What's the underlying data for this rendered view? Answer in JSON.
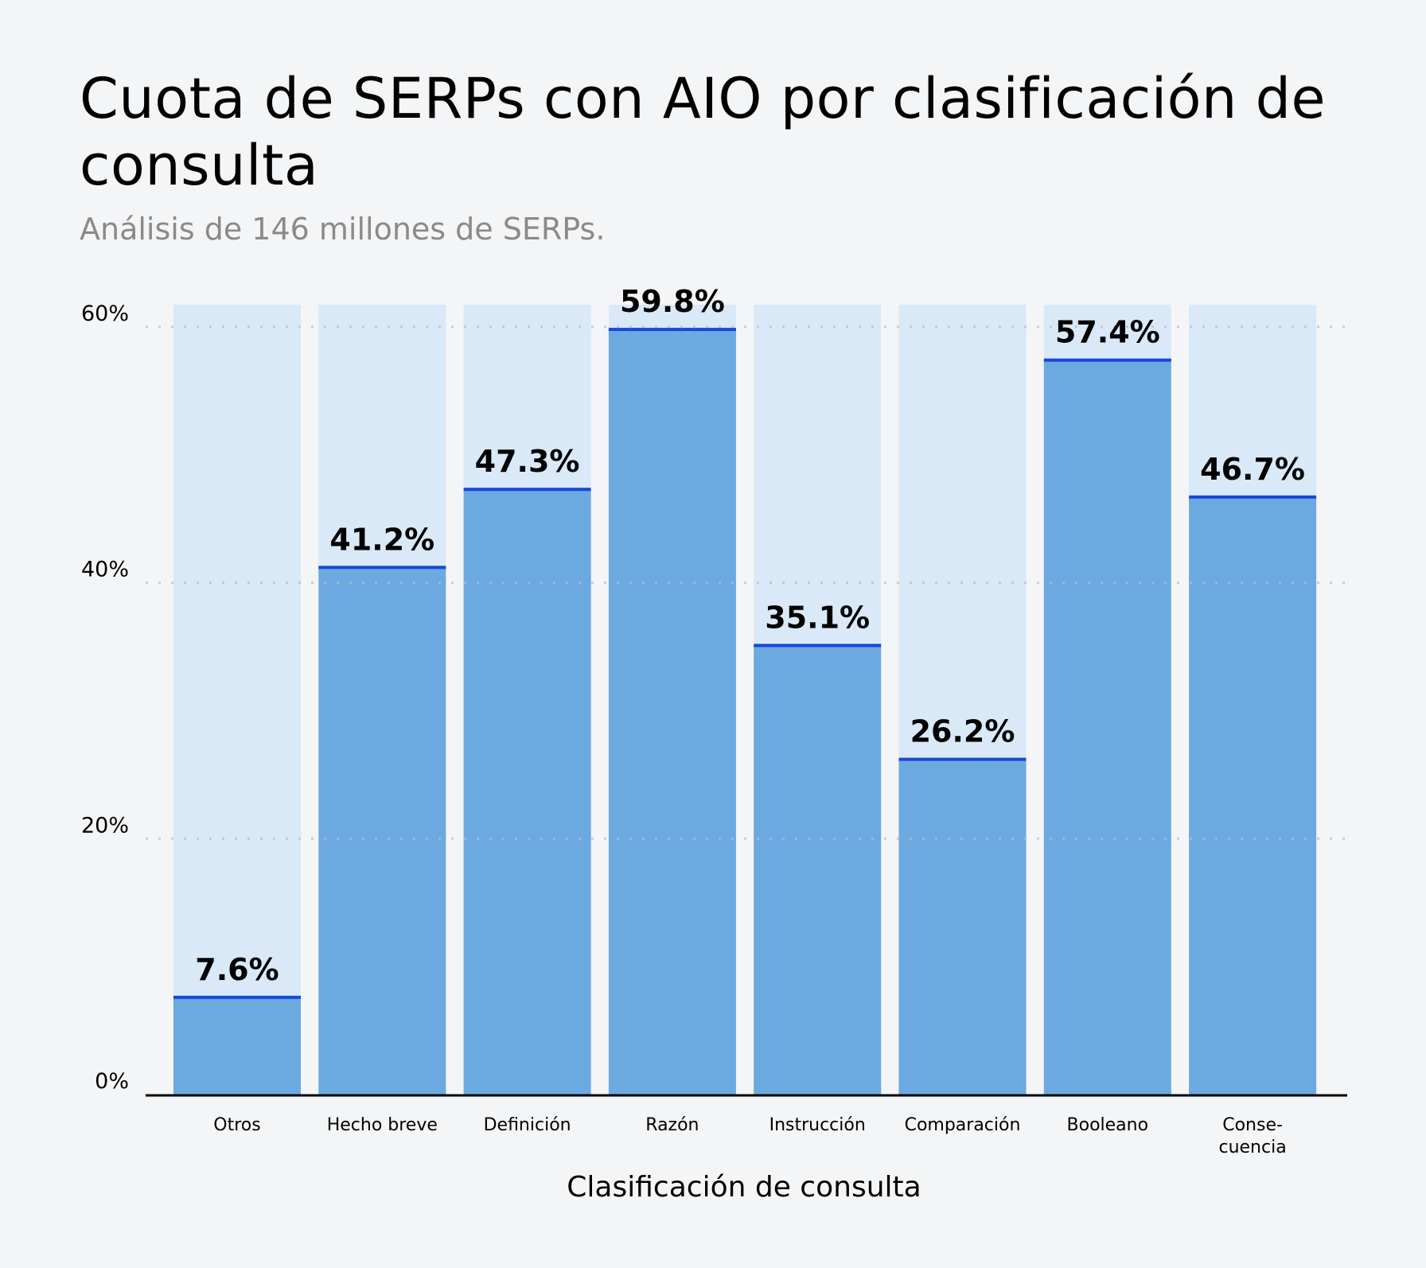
{
  "title": "Cuota de SERPs con AIO por clasificación de consulta",
  "subtitle": "Análisis de 146 millones de SERPs.",
  "colors": {
    "bar": "#6ca9e0",
    "bar_background": "#d9e9f8",
    "bar_top_line": "#1747d8",
    "grid": "#c8c8c8"
  },
  "chart_data": {
    "type": "bar",
    "title": "Cuota de SERPs con AIO por clasificación de consulta",
    "subtitle": "Análisis de 146 millones de SERPs.",
    "xlabel": "Clasificación de consulta",
    "ylabel": "",
    "ylim": [
      0,
      60
    ],
    "yticks": [
      "0%",
      "20%",
      "40%",
      "60%"
    ],
    "grid": true,
    "categories": [
      [
        "Otros"
      ],
      [
        "Hecho breve"
      ],
      [
        "Definición"
      ],
      [
        "Razón"
      ],
      [
        "Instrucción"
      ],
      [
        "Comparación"
      ],
      [
        "Booleano"
      ],
      [
        "Conse-",
        "cuencia"
      ]
    ],
    "values": [
      7.6,
      41.2,
      47.3,
      59.8,
      35.1,
      26.2,
      57.4,
      46.7
    ],
    "labels": [
      "7.6%",
      "41.2%",
      "47.3%",
      "59.8%",
      "35.1%",
      "26.2%",
      "57.4%",
      "46.7%"
    ]
  }
}
